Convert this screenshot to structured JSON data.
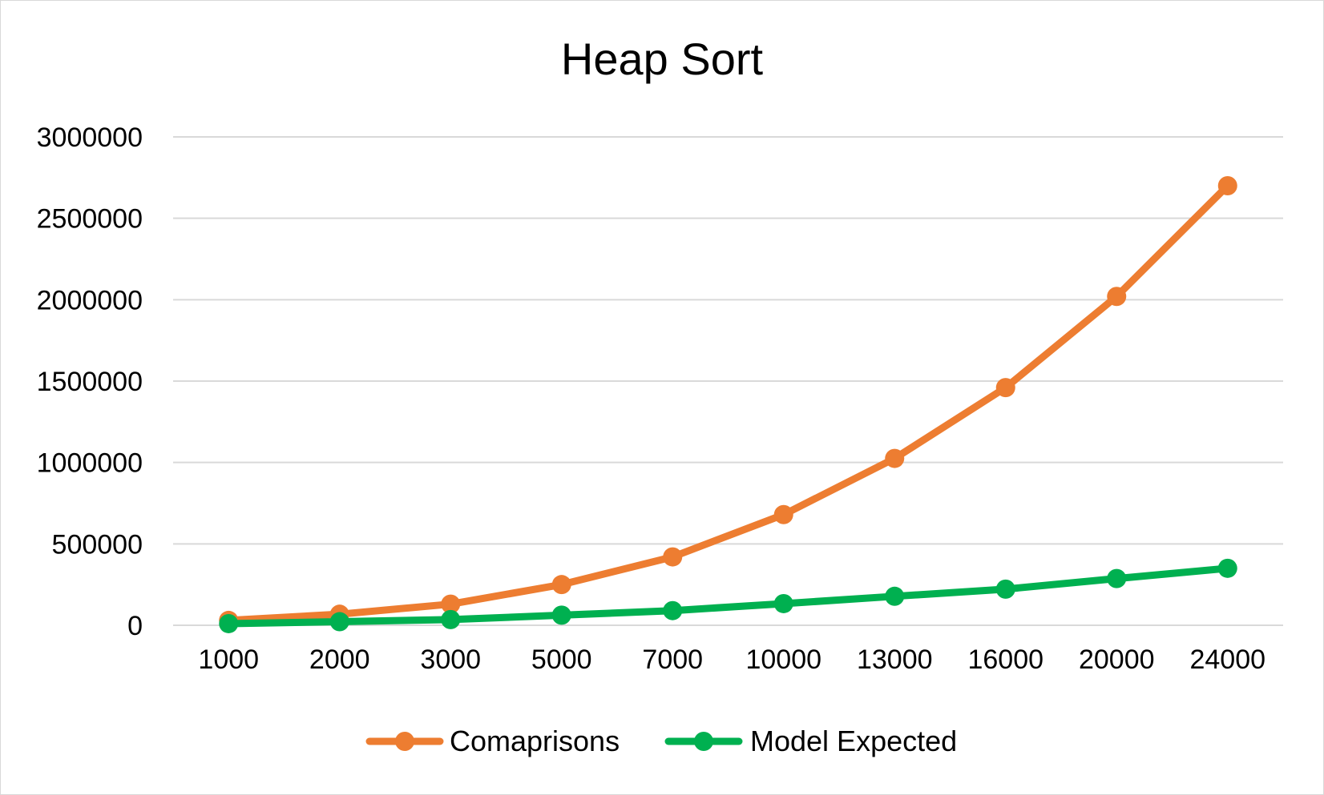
{
  "chart_data": {
    "type": "line",
    "title": "Heap Sort",
    "xlabel": "",
    "ylabel": "",
    "categories": [
      "1000",
      "2000",
      "3000",
      "5000",
      "7000",
      "10000",
      "13000",
      "16000",
      "20000",
      "24000"
    ],
    "series": [
      {
        "name": "Comaprisons",
        "color": "#ED7D31",
        "values": [
          30000,
          68000,
          130000,
          250000,
          420000,
          680000,
          1025000,
          1460000,
          2020000,
          2700000
        ]
      },
      {
        "name": "Model Expected",
        "color": "#00B050",
        "values": [
          10000,
          22000,
          35000,
          62000,
          90000,
          133000,
          178000,
          222000,
          287000,
          350000
        ]
      }
    ],
    "ylim": [
      0,
      3000000
    ],
    "yticks": [
      "0",
      "500000",
      "1000000",
      "1500000",
      "2000000",
      "2500000",
      "3000000"
    ],
    "grid": true,
    "legend_position": "bottom"
  }
}
